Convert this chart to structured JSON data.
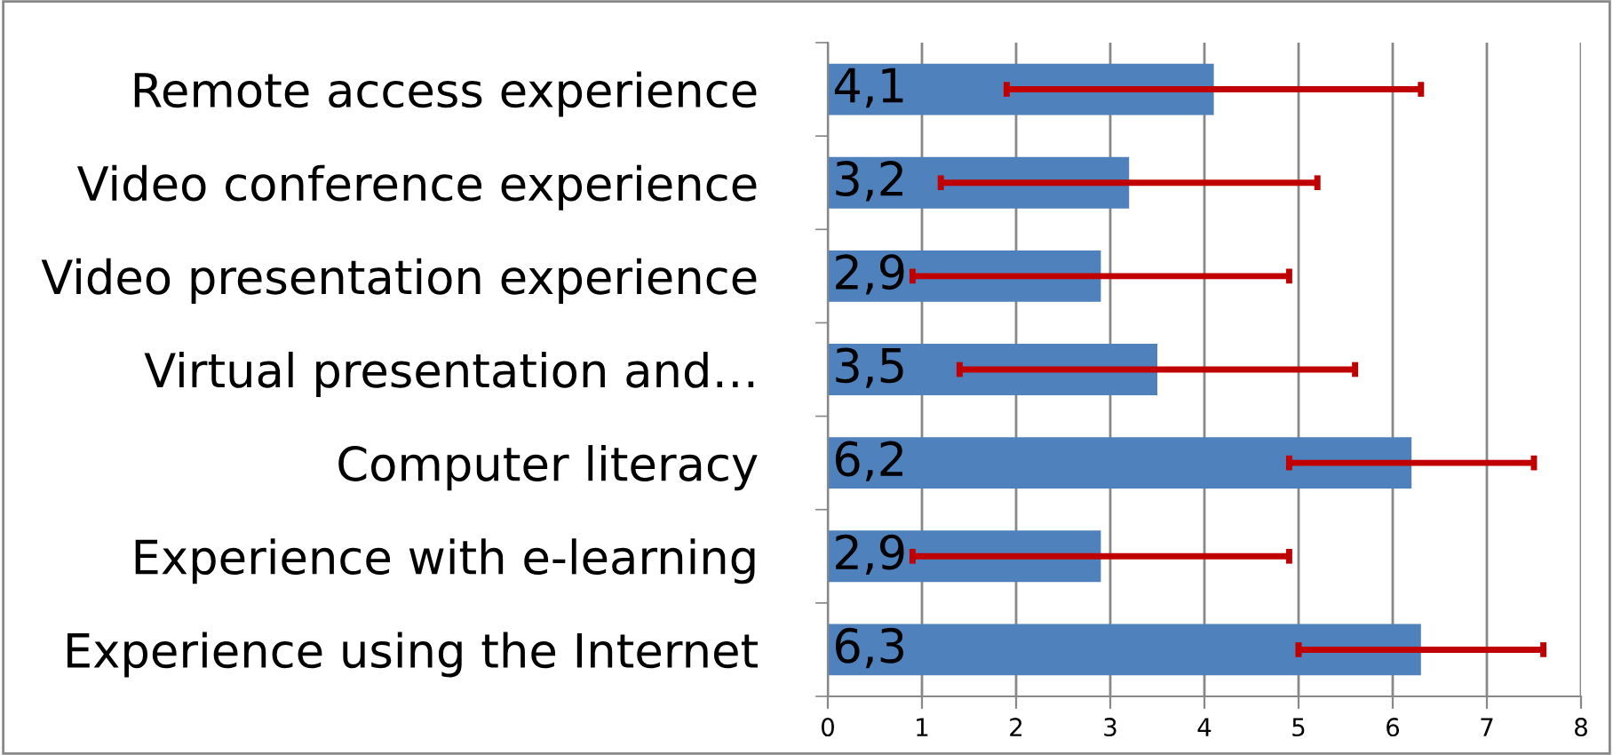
{
  "chart_data": {
    "type": "bar",
    "orientation": "horizontal",
    "categories": [
      "Remote access experience",
      "Video conference experience",
      "Video presentation experience",
      "Virtual presentation and…",
      "Computer literacy",
      "Experience with e-learning",
      "Experience using the Internet"
    ],
    "values": [
      4.1,
      3.2,
      2.9,
      3.5,
      6.2,
      2.9,
      6.3
    ],
    "value_labels": [
      "4,1",
      "3,2",
      "2,9",
      "3,5",
      "6,2",
      "2,9",
      "6,3"
    ],
    "errors": [
      2.2,
      2.0,
      2.0,
      2.1,
      1.3,
      2.0,
      1.3
    ],
    "color": "#4f81bd",
    "xlim": [
      0,
      8
    ],
    "xticks": [
      0,
      1,
      2,
      3,
      4,
      5,
      6,
      7,
      8
    ],
    "grid": "x"
  }
}
